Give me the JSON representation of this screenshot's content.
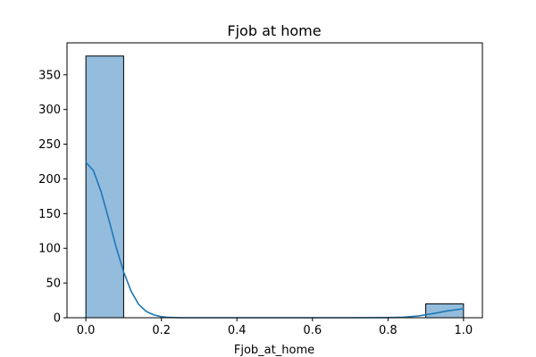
{
  "chart_data": {
    "type": "bar",
    "title": "Fjob at home",
    "xlabel": "Fjob_at_home",
    "ylabel": "",
    "xlim": [
      -0.05,
      1.05
    ],
    "ylim": [
      0,
      396
    ],
    "bins": [
      {
        "x0": 0.0,
        "x1": 0.1,
        "count": 377
      },
      {
        "x0": 0.9,
        "x1": 1.0,
        "count": 20
      }
    ],
    "kde": {
      "x": [
        0.0,
        0.02,
        0.04,
        0.06,
        0.08,
        0.1,
        0.12,
        0.14,
        0.16,
        0.18,
        0.2,
        0.22,
        0.25,
        0.3,
        0.4,
        0.5,
        0.6,
        0.7,
        0.8,
        0.84,
        0.88,
        0.92,
        0.96,
        1.0
      ],
      "y": [
        224,
        212,
        182,
        143,
        102,
        66,
        38,
        19,
        9,
        4,
        1.5,
        0.5,
        0,
        0,
        0,
        0,
        0,
        0,
        0.3,
        0.8,
        2.5,
        6,
        10,
        13
      ]
    },
    "xticks": [
      0.0,
      0.2,
      0.4,
      0.6,
      0.8,
      1.0
    ],
    "xtick_labels": [
      "0.0",
      "0.2",
      "0.4",
      "0.6",
      "0.8",
      "1.0"
    ],
    "yticks": [
      0,
      50,
      100,
      150,
      200,
      250,
      300,
      350
    ],
    "ytick_labels": [
      "0",
      "50",
      "100",
      "150",
      "200",
      "250",
      "300",
      "350"
    ],
    "bar_color": "#93bcdd",
    "bar_edge_color": "#000000",
    "line_color": "#1f77b4",
    "grid": false,
    "legend": "none"
  }
}
